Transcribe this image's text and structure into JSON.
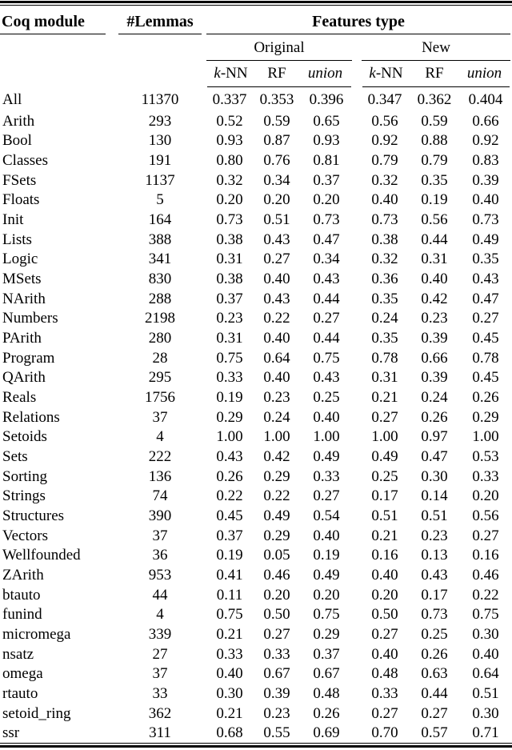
{
  "table": {
    "col1_header": "Coq module",
    "col2_header": "#Lemmas",
    "features_header": "Features type",
    "group_headers": [
      "Original",
      "New"
    ],
    "sub_headers": {
      "knn_italic": "k",
      "knn_rest": "-NN",
      "rf": "RF",
      "union": "union"
    },
    "all_row": {
      "module": "All",
      "lemmas": "11370",
      "values": [
        "0.337",
        "0.353",
        "0.396",
        "0.347",
        "0.362",
        "0.404"
      ]
    },
    "rows": [
      {
        "module": "Arith",
        "lemmas": "293",
        "values": [
          "0.52",
          "0.59",
          "0.65",
          "0.56",
          "0.59",
          "0.66"
        ]
      },
      {
        "module": "Bool",
        "lemmas": "130",
        "values": [
          "0.93",
          "0.87",
          "0.93",
          "0.92",
          "0.88",
          "0.92"
        ]
      },
      {
        "module": "Classes",
        "lemmas": "191",
        "values": [
          "0.80",
          "0.76",
          "0.81",
          "0.79",
          "0.79",
          "0.83"
        ]
      },
      {
        "module": "FSets",
        "lemmas": "1137",
        "values": [
          "0.32",
          "0.34",
          "0.37",
          "0.32",
          "0.35",
          "0.39"
        ]
      },
      {
        "module": "Floats",
        "lemmas": "5",
        "values": [
          "0.20",
          "0.20",
          "0.20",
          "0.40",
          "0.19",
          "0.40"
        ]
      },
      {
        "module": "Init",
        "lemmas": "164",
        "values": [
          "0.73",
          "0.51",
          "0.73",
          "0.73",
          "0.56",
          "0.73"
        ]
      },
      {
        "module": "Lists",
        "lemmas": "388",
        "values": [
          "0.38",
          "0.43",
          "0.47",
          "0.38",
          "0.44",
          "0.49"
        ]
      },
      {
        "module": "Logic",
        "lemmas": "341",
        "values": [
          "0.31",
          "0.27",
          "0.34",
          "0.32",
          "0.31",
          "0.35"
        ]
      },
      {
        "module": "MSets",
        "lemmas": "830",
        "values": [
          "0.38",
          "0.40",
          "0.43",
          "0.36",
          "0.40",
          "0.43"
        ]
      },
      {
        "module": "NArith",
        "lemmas": "288",
        "values": [
          "0.37",
          "0.43",
          "0.44",
          "0.35",
          "0.42",
          "0.47"
        ]
      },
      {
        "module": "Numbers",
        "lemmas": "2198",
        "values": [
          "0.23",
          "0.22",
          "0.27",
          "0.24",
          "0.23",
          "0.27"
        ]
      },
      {
        "module": "PArith",
        "lemmas": "280",
        "values": [
          "0.31",
          "0.40",
          "0.44",
          "0.35",
          "0.39",
          "0.45"
        ]
      },
      {
        "module": "Program",
        "lemmas": "28",
        "values": [
          "0.75",
          "0.64",
          "0.75",
          "0.78",
          "0.66",
          "0.78"
        ]
      },
      {
        "module": "QArith",
        "lemmas": "295",
        "values": [
          "0.33",
          "0.40",
          "0.43",
          "0.31",
          "0.39",
          "0.45"
        ]
      },
      {
        "module": "Reals",
        "lemmas": "1756",
        "values": [
          "0.19",
          "0.23",
          "0.25",
          "0.21",
          "0.24",
          "0.26"
        ]
      },
      {
        "module": "Relations",
        "lemmas": "37",
        "values": [
          "0.29",
          "0.24",
          "0.40",
          "0.27",
          "0.26",
          "0.29"
        ]
      },
      {
        "module": "Setoids",
        "lemmas": "4",
        "values": [
          "1.00",
          "1.00",
          "1.00",
          "1.00",
          "0.97",
          "1.00"
        ]
      },
      {
        "module": "Sets",
        "lemmas": "222",
        "values": [
          "0.43",
          "0.42",
          "0.49",
          "0.49",
          "0.47",
          "0.53"
        ]
      },
      {
        "module": "Sorting",
        "lemmas": "136",
        "values": [
          "0.26",
          "0.29",
          "0.33",
          "0.25",
          "0.30",
          "0.33"
        ]
      },
      {
        "module": "Strings",
        "lemmas": "74",
        "values": [
          "0.22",
          "0.22",
          "0.27",
          "0.17",
          "0.14",
          "0.20"
        ]
      },
      {
        "module": "Structures",
        "lemmas": "390",
        "values": [
          "0.45",
          "0.49",
          "0.54",
          "0.51",
          "0.51",
          "0.56"
        ]
      },
      {
        "module": "Vectors",
        "lemmas": "37",
        "values": [
          "0.37",
          "0.29",
          "0.40",
          "0.21",
          "0.23",
          "0.27"
        ]
      },
      {
        "module": "Wellfounded",
        "lemmas": "36",
        "values": [
          "0.19",
          "0.05",
          "0.19",
          "0.16",
          "0.13",
          "0.16"
        ]
      },
      {
        "module": "ZArith",
        "lemmas": "953",
        "values": [
          "0.41",
          "0.46",
          "0.49",
          "0.40",
          "0.43",
          "0.46"
        ]
      },
      {
        "module": "btauto",
        "lemmas": "44",
        "values": [
          "0.11",
          "0.20",
          "0.20",
          "0.20",
          "0.17",
          "0.22"
        ]
      },
      {
        "module": "funind",
        "lemmas": "4",
        "values": [
          "0.75",
          "0.50",
          "0.75",
          "0.50",
          "0.73",
          "0.75"
        ]
      },
      {
        "module": "micromega",
        "lemmas": "339",
        "values": [
          "0.21",
          "0.27",
          "0.29",
          "0.27",
          "0.25",
          "0.30"
        ]
      },
      {
        "module": "nsatz",
        "lemmas": "27",
        "values": [
          "0.33",
          "0.33",
          "0.37",
          "0.40",
          "0.26",
          "0.40"
        ]
      },
      {
        "module": "omega",
        "lemmas": "37",
        "values": [
          "0.40",
          "0.67",
          "0.67",
          "0.48",
          "0.63",
          "0.64"
        ]
      },
      {
        "module": "rtauto",
        "lemmas": "33",
        "values": [
          "0.30",
          "0.39",
          "0.48",
          "0.33",
          "0.44",
          "0.51"
        ]
      },
      {
        "module": "setoid_ring",
        "lemmas": "362",
        "values": [
          "0.21",
          "0.23",
          "0.26",
          "0.27",
          "0.27",
          "0.30"
        ]
      },
      {
        "module": "ssr",
        "lemmas": "311",
        "values": [
          "0.68",
          "0.55",
          "0.69",
          "0.70",
          "0.57",
          "0.71"
        ]
      }
    ]
  }
}
